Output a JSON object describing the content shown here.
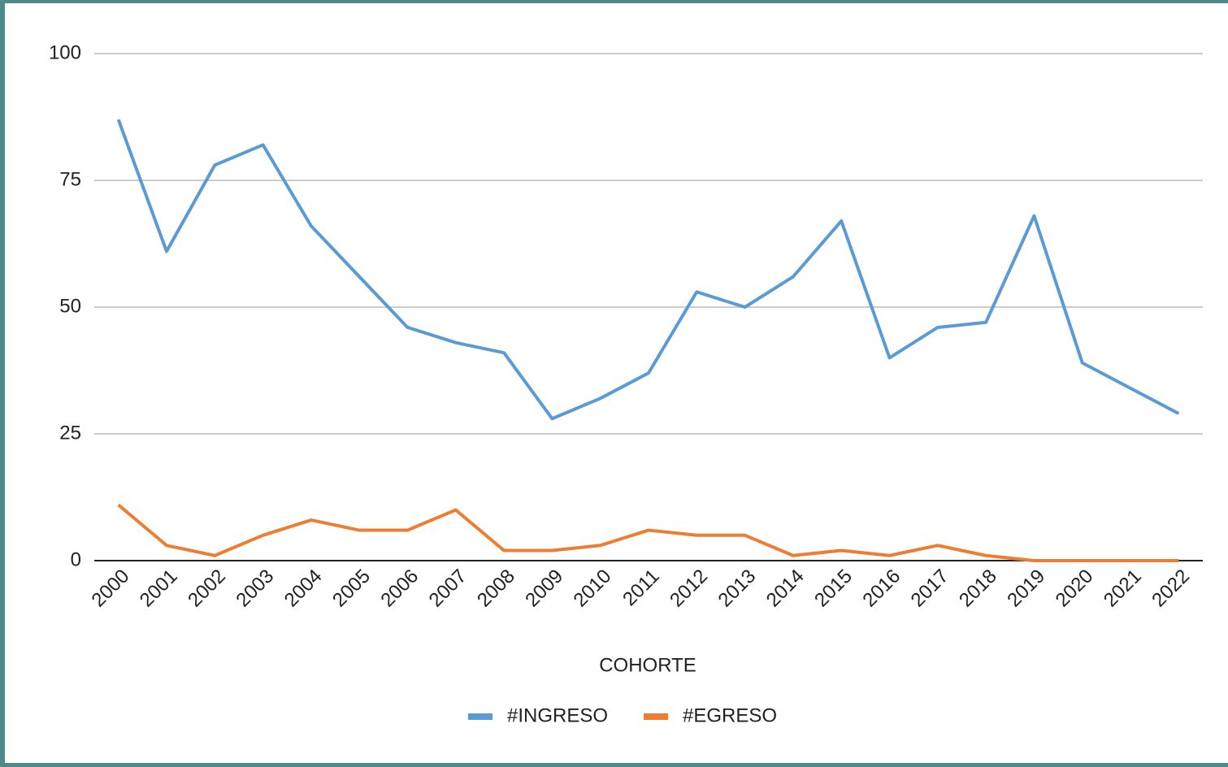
{
  "chart_data": {
    "type": "line",
    "x_label": "COHORTE",
    "categories": [
      "2000",
      "2001",
      "2002",
      "2003",
      "2004",
      "2005",
      "2006",
      "2007",
      "2008",
      "2009",
      "2010",
      "2011",
      "2012",
      "2013",
      "2014",
      "2015",
      "2016",
      "2017",
      "2018",
      "2019",
      "2020",
      "2021",
      "2022"
    ],
    "series": [
      {
        "name": "#INGRESO",
        "color": "#5b9bd5",
        "values": [
          87,
          61,
          78,
          82,
          66,
          56,
          46,
          43,
          41,
          28,
          32,
          37,
          53,
          50,
          56,
          67,
          40,
          46,
          47,
          68,
          39,
          34,
          29
        ]
      },
      {
        "name": "#EGRESO",
        "color": "#ed7d31",
        "values": [
          11,
          3,
          1,
          5,
          8,
          6,
          6,
          10,
          2,
          2,
          3,
          6,
          5,
          5,
          1,
          2,
          1,
          3,
          1,
          0,
          0,
          0,
          0
        ]
      }
    ],
    "ylim": [
      0,
      100
    ],
    "yticks": [
      0,
      25,
      50,
      75,
      100
    ],
    "grid": true,
    "legend": "bottom"
  }
}
